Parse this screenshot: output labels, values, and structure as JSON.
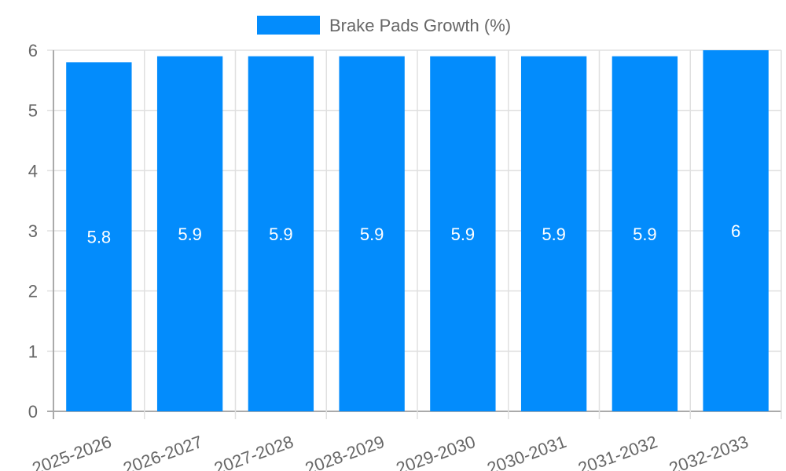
{
  "chart_data": {
    "type": "bar",
    "title": "",
    "xlabel": "",
    "ylabel": "",
    "categories": [
      "2025-2026",
      "2026-2027",
      "2027-2028",
      "2028-2029",
      "2029-2030",
      "2030-2031",
      "2031-2032",
      "2032-2033"
    ],
    "series": [
      {
        "name": "Brake Pads Growth (%)",
        "values": [
          5.8,
          5.9,
          5.9,
          5.9,
          5.9,
          5.9,
          5.9,
          6
        ],
        "color": "#038cfc"
      }
    ],
    "ylim": [
      0,
      6
    ],
    "yticks": [
      0,
      1,
      2,
      3,
      4,
      5,
      6
    ],
    "grid": true,
    "legend_position": "top",
    "data_labels": [
      "5.8",
      "5.9",
      "5.9",
      "5.9",
      "5.9",
      "5.9",
      "5.9",
      "6"
    ]
  },
  "legend": {
    "label": "Brake Pads Growth (%)"
  },
  "colors": {
    "bar": "#038cfc",
    "grid": "#e0e0e0",
    "axis": "#aaaaaa",
    "text": "#666666"
  }
}
